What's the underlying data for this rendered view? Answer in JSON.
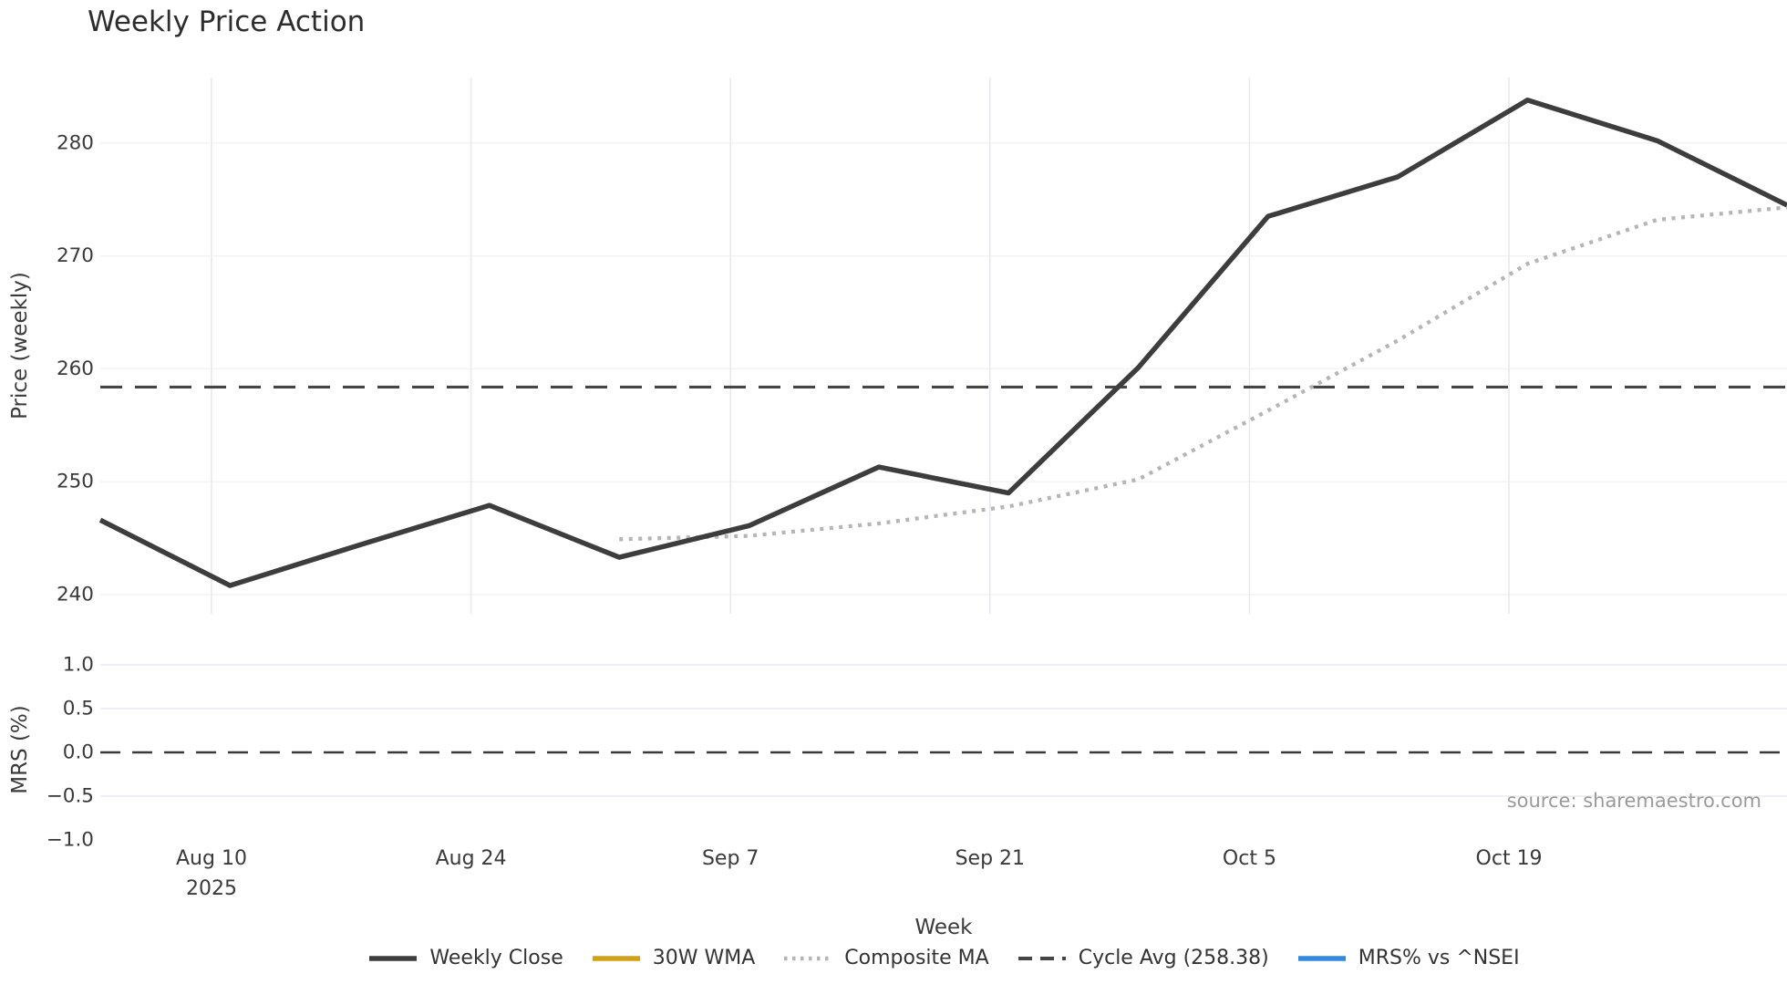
{
  "figure": {
    "title": "Weekly Price Action",
    "source_credit": "source: sharemaestro.com"
  },
  "chart_data": {
    "type": "line",
    "title": "Weekly Price Action",
    "xlabel": "Week",
    "x_dates": [
      "Aug 4 2025",
      "Aug 11 2025",
      "Aug 18 2025",
      "Aug 25 2025",
      "Sep 1 2025",
      "Sep 8 2025",
      "Sep 15 2025",
      "Sep 22 2025",
      "Sep 29 2025",
      "Oct 6 2025",
      "Oct 13 2025",
      "Oct 20 2025",
      "Oct 27 2025",
      "Nov 3 2025"
    ],
    "x_span_days": 91,
    "x_point_days": [
      0,
      7,
      14,
      21,
      28,
      35,
      42,
      49,
      56,
      63,
      70,
      77,
      84,
      91
    ],
    "x_ticks": [
      {
        "label": "Aug 10",
        "sublabel": "2025",
        "day": 6
      },
      {
        "label": "Aug 24",
        "sublabel": "",
        "day": 20
      },
      {
        "label": "Sep 7",
        "sublabel": "",
        "day": 34
      },
      {
        "label": "Sep 21",
        "sublabel": "",
        "day": 48
      },
      {
        "label": "Oct 5",
        "sublabel": "",
        "day": 62
      },
      {
        "label": "Oct 19",
        "sublabel": "",
        "day": 76
      }
    ],
    "grid": true,
    "legend_position": "bottom center",
    "panels": [
      {
        "name": "price",
        "ylabel": "Price (weekly)",
        "ylim": [
          238.3,
          285.8
        ],
        "yticks": [
          {
            "v": 240,
            "label": "240"
          },
          {
            "v": 250,
            "label": "250"
          },
          {
            "v": 260,
            "label": "260"
          },
          {
            "v": 270,
            "label": "270"
          },
          {
            "v": 280,
            "label": "280"
          }
        ],
        "series": [
          {
            "name": "Weekly Close",
            "color": "#3d3d3d",
            "style": "solid",
            "values": [
              246.6,
              240.8,
              244.4,
              247.9,
              243.3,
              246.1,
              251.3,
              249.0,
              260.1,
              273.5,
              277.0,
              283.8,
              280.2,
              274.5
            ]
          },
          {
            "name": "30W WMA",
            "color": "#d1a01a",
            "style": "solid",
            "values": []
          },
          {
            "name": "Composite MA",
            "color": "#b5b5b5",
            "style": "dotted",
            "values": [
              null,
              null,
              null,
              null,
              244.9,
              245.2,
              246.3,
              247.8,
              250.2,
              256.3,
              262.5,
              269.3,
              273.2,
              274.3
            ]
          },
          {
            "name": "Cycle Avg (258.38)",
            "color": "#454545",
            "style": "dashed",
            "constant": 258.38
          }
        ]
      },
      {
        "name": "mrs",
        "ylabel": "MRS (%)",
        "ylim": [
          -1.0,
          1.146
        ],
        "yticks": [
          {
            "v": 1.0,
            "label": "1.0",
            "gridline": true
          },
          {
            "v": 0.5,
            "label": "0.5",
            "gridline": true
          },
          {
            "v": 0.0,
            "label": "0.0",
            "gridline": false
          },
          {
            "v": -0.5,
            "label": "−0.5",
            "gridline": true
          },
          {
            "v": -1.0,
            "label": "−1.0",
            "gridline": false
          }
        ],
        "zero_line": {
          "value": 0.0,
          "color": "#3a3a3a",
          "style": "dashed"
        },
        "series": [
          {
            "name": "MRS% vs ^NSEI",
            "color": "#3788d8",
            "style": "solid",
            "values": []
          }
        ]
      }
    ]
  },
  "legend": {
    "items": [
      {
        "label": "Weekly Close",
        "color": "#3d3d3d",
        "style": "solid"
      },
      {
        "label": "30W WMA",
        "color": "#d1a01a",
        "style": "solid"
      },
      {
        "label": "Composite MA",
        "color": "#b5b5b5",
        "style": "dotted"
      },
      {
        "label": "Cycle Avg (258.38)",
        "color": "#454545",
        "style": "dashed"
      },
      {
        "label": "MRS% vs ^NSEI",
        "color": "#3788d8",
        "style": "solid"
      }
    ]
  },
  "colors": {
    "background": "#ffffff",
    "text": "#3a3a3a",
    "title_text": "#2d2d2d",
    "source_text": "#9a9a9a",
    "grid_vertical": "#e9e9ee",
    "grid_horizontal_top": "#f3f3f7",
    "grid_horizontal_bottom": "#eaecf2"
  }
}
